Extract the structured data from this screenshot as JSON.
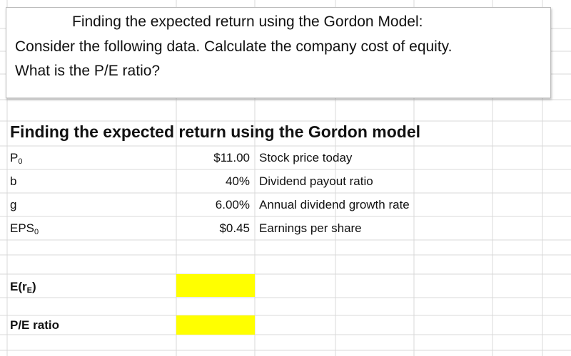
{
  "text_box": {
    "lines": [
      "Finding the expected return using the Gordon Model:",
      "Consider the following data. Calculate the company cost of equity.",
      "What is the P/E ratio?"
    ]
  },
  "table": {
    "title": "Finding the expected return using the Gordon model",
    "rows": [
      {
        "label": "P",
        "label_sub": "0",
        "value": "$11.00",
        "description": "Stock price today"
      },
      {
        "label": "b",
        "value": "40%",
        "description": "Dividend payout ratio"
      },
      {
        "label": "g",
        "value": "6.00%",
        "description": "Annual dividend growth rate"
      },
      {
        "label": "EPS",
        "label_sub": "0",
        "value": "$0.45",
        "description": "Earnings per share"
      }
    ]
  },
  "outputs": [
    {
      "label": "E(r",
      "label_sub": "E",
      "label_suffix": ")"
    },
    {
      "label": "P/E ratio"
    }
  ]
}
